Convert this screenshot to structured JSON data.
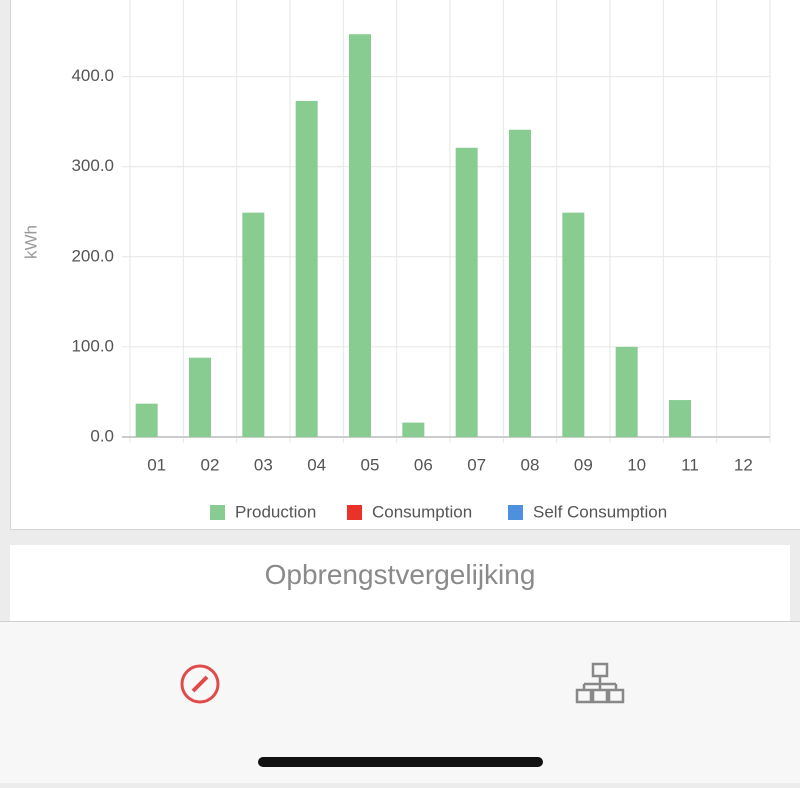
{
  "chart_data": {
    "type": "bar",
    "y_label": "kWh",
    "categories": [
      "01",
      "02",
      "03",
      "04",
      "05",
      "06",
      "07",
      "08",
      "09",
      "10",
      "11",
      "12"
    ],
    "series": [
      {
        "name": "Production",
        "color": "#88cc91",
        "values": [
          37,
          88,
          249,
          373,
          447,
          16,
          321,
          341,
          249,
          100,
          41,
          0
        ]
      },
      {
        "name": "Consumption",
        "color": "#e8322a",
        "values": [
          0,
          0,
          0,
          0,
          0,
          0,
          0,
          0,
          0,
          0,
          0,
          0
        ]
      },
      {
        "name": "Self Consumption",
        "color": "#4f8fe0",
        "values": [
          0,
          0,
          0,
          0,
          0,
          0,
          0,
          0,
          0,
          0,
          0,
          0
        ]
      }
    ],
    "ylim": [
      0,
      485
    ],
    "yticks": [
      {
        "value": 0,
        "label": "0.0"
      },
      {
        "value": 100,
        "label": "100.0"
      },
      {
        "value": 200,
        "label": "200.0"
      },
      {
        "value": 300,
        "label": "300.0"
      },
      {
        "value": 400,
        "label": "400.0"
      }
    ],
    "grid": true
  },
  "card_title": "Opbrengstvergelijking"
}
